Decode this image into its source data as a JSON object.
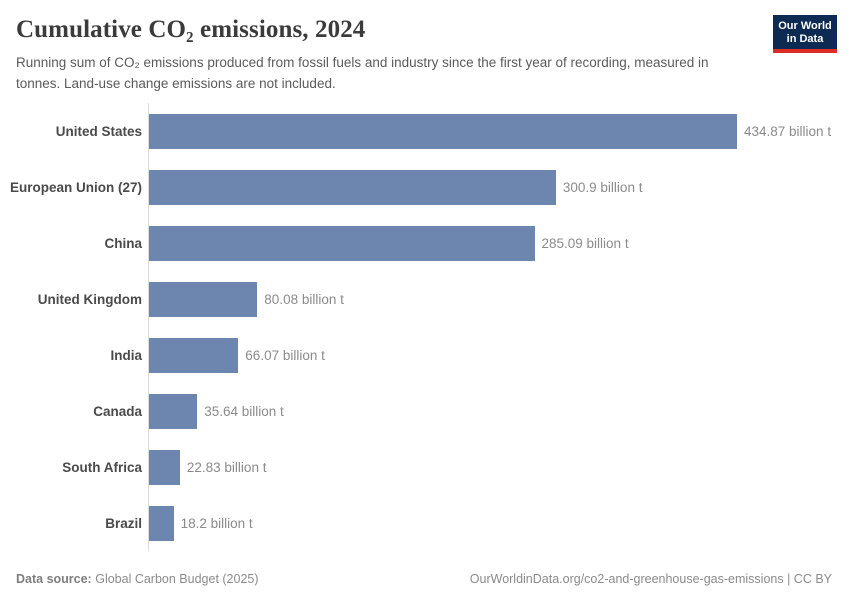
{
  "header": {
    "title": "Cumulative CO₂ emissions, 2024",
    "subtitle": "Running sum of CO₂ emissions produced from fossil fuels and industry since the first year of recording, measured in tonnes. Land-use change emissions are not included.",
    "logo": {
      "line1": "Our World",
      "line2": "in Data"
    }
  },
  "chart_data": {
    "type": "bar",
    "orientation": "horizontal",
    "title": "Cumulative CO₂ emissions, 2024",
    "xlabel": "",
    "ylabel": "",
    "unit": "billion t",
    "grid": false,
    "legend": "none",
    "xlim": [
      0,
      434.87
    ],
    "categories": [
      "United States",
      "European Union (27)",
      "China",
      "United Kingdom",
      "India",
      "Canada",
      "South Africa",
      "Brazil"
    ],
    "values": [
      434.87,
      300.9,
      285.09,
      80.08,
      66.07,
      35.64,
      22.83,
      18.2
    ],
    "value_labels": [
      "434.87 billion t",
      "300.9 billion t",
      "285.09 billion t",
      "80.08 billion t",
      "66.07 billion t",
      "35.64 billion t",
      "22.83 billion t",
      "18.2 billion t"
    ],
    "bar_color": "#6c86b0"
  },
  "footer": {
    "source_label": "Data source:",
    "source_value": "Global Carbon Budget (2025)",
    "attribution": "OurWorldinData.org/co2-and-greenhouse-gas-emissions | CC BY"
  },
  "colors": {
    "bar": "#6c86b0",
    "axis_line": "#dcdcdc",
    "logo_navy": "#0d2b52",
    "logo_red": "#dc2d25"
  }
}
